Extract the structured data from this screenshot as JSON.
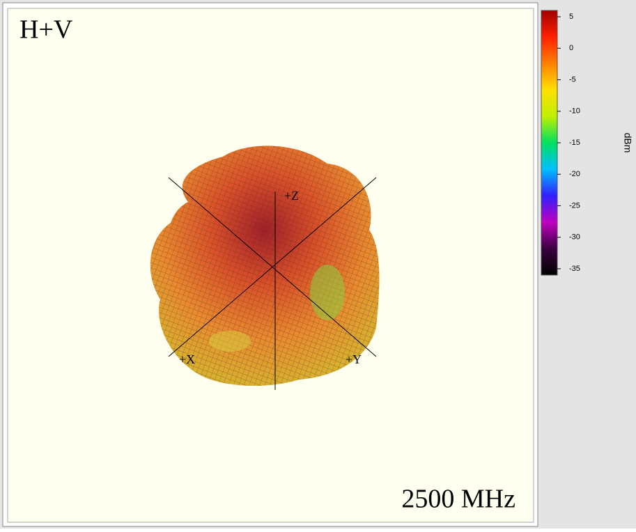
{
  "chart_data": {
    "type": "surface",
    "title": "H+V",
    "annotation": "2500 MHz",
    "axis_labels": [
      "+Z",
      "+X",
      "+Y"
    ],
    "colorbar": {
      "label": "dBm",
      "clim": [
        -36,
        6
      ],
      "cticks": [
        5,
        0,
        -5,
        -10,
        -15,
        -20,
        -25,
        -30,
        -35
      ],
      "colormap": [
        "#000000",
        "#3a0040",
        "#c000c0",
        "#3020ff",
        "#00c0ff",
        "#00e060",
        "#c0f000",
        "#ffe000",
        "#ff8000",
        "#ff2000",
        "#a00000"
      ]
    }
  }
}
